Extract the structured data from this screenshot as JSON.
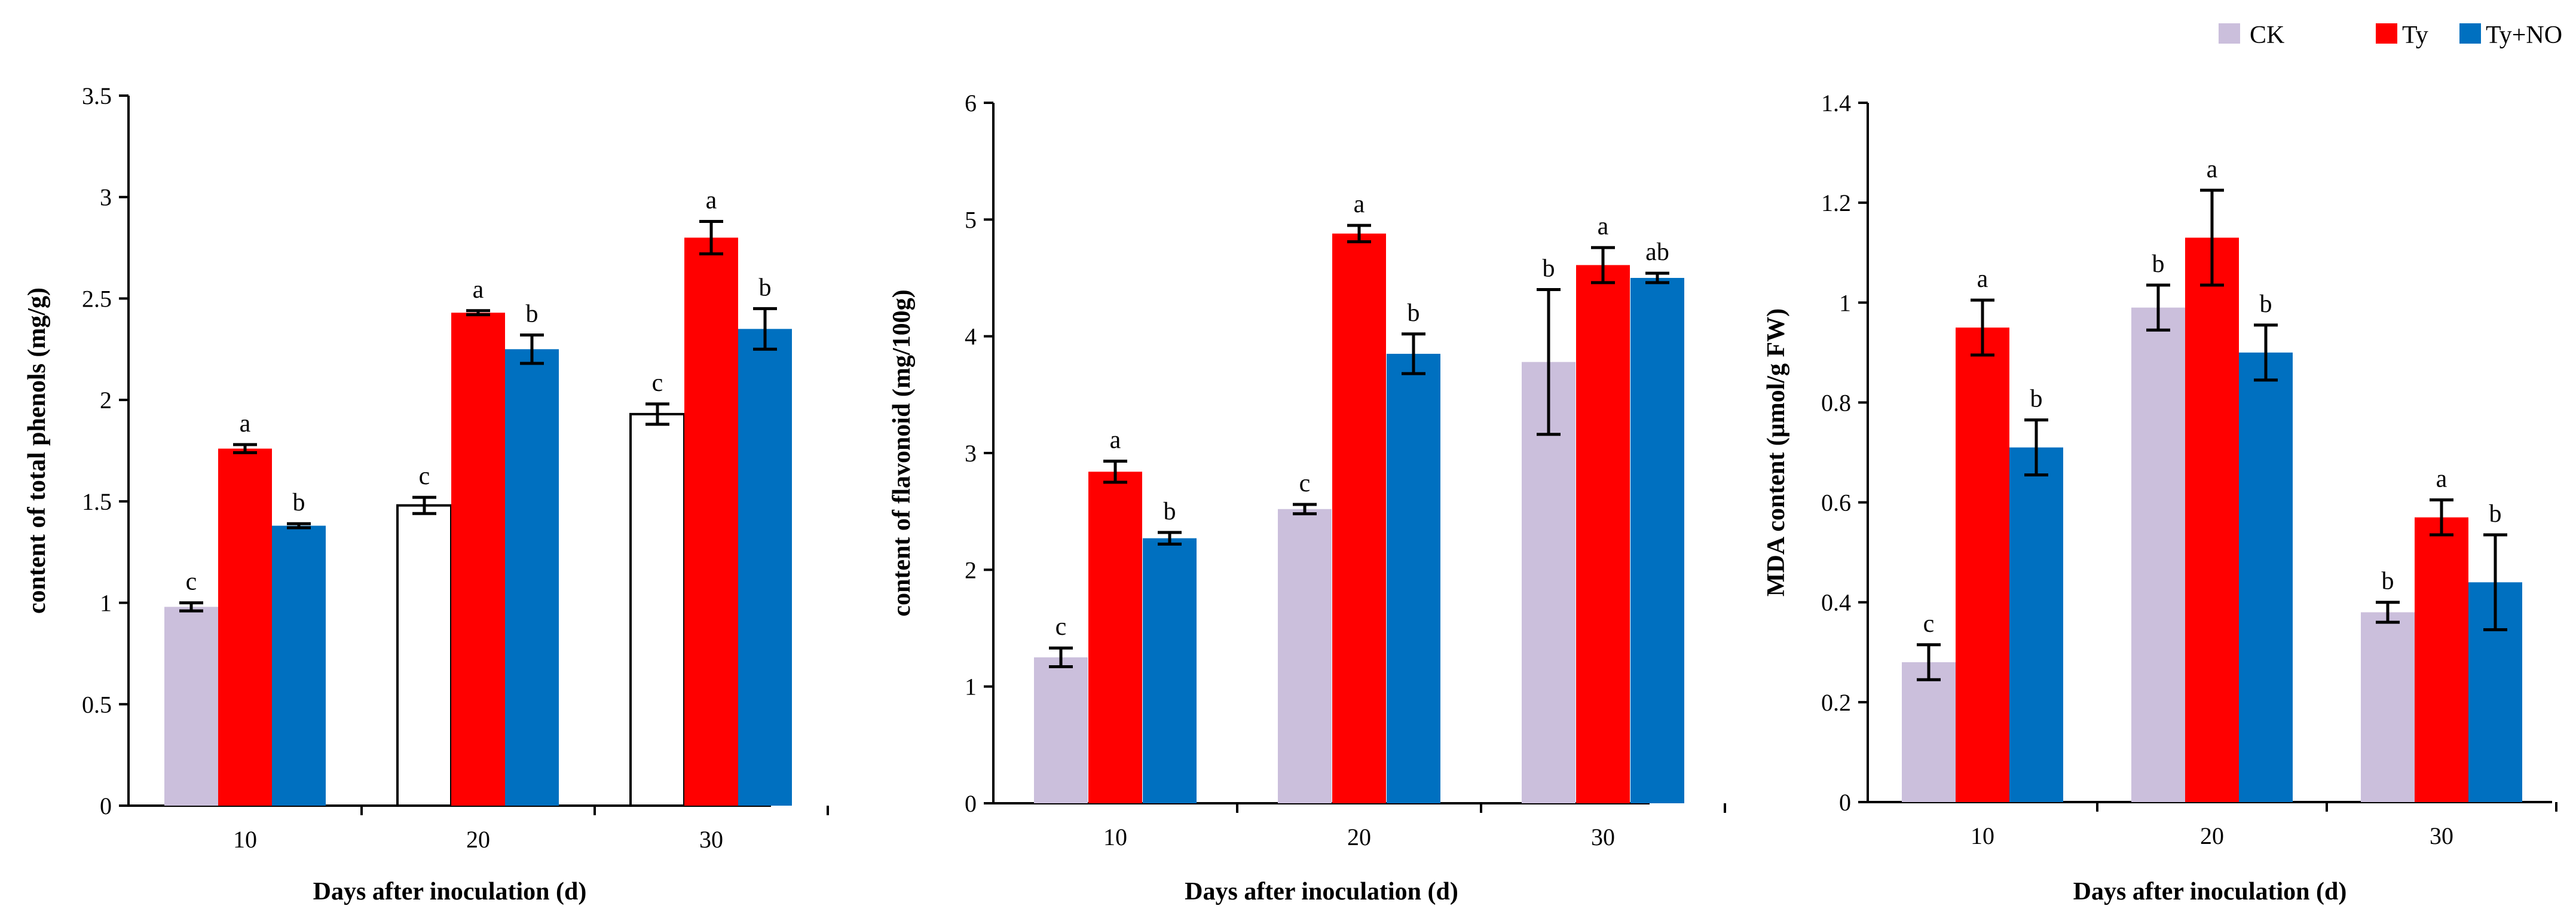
{
  "legend": [
    {
      "name": "CK",
      "color": "#cbbfdc"
    },
    {
      "name": "Ty",
      "color": "#ff0000"
    },
    {
      "name": "Ty+NO",
      "color": "#0070c0"
    }
  ],
  "chart_data": [
    {
      "type": "bar",
      "title": "",
      "xlabel": "Days after inoculation (d)",
      "ylabel": "content of total phenols (mg/g)",
      "ylim": [
        0,
        3.5
      ],
      "yticks": [
        "0",
        "0.5",
        "1",
        "1.5",
        "2",
        "2.5",
        "3",
        "3.5"
      ],
      "categories": [
        "10",
        "20",
        "30"
      ],
      "series": [
        {
          "name": "CK",
          "values": [
            0.98,
            1.48,
            1.93
          ],
          "errors": [
            0.02,
            0.04,
            0.05
          ],
          "labels": [
            "c",
            "c",
            "c"
          ],
          "fills": [
            "#cbbfdc",
            "#ffffff",
            "#ffffff"
          ]
        },
        {
          "name": "Ty",
          "values": [
            1.76,
            2.43,
            2.8
          ],
          "errors": [
            0.02,
            0.01,
            0.08
          ],
          "labels": [
            "a",
            "a",
            "a"
          ]
        },
        {
          "name": "Ty+NO",
          "values": [
            1.38,
            2.25,
            2.35
          ],
          "errors": [
            0.01,
            0.07,
            0.1
          ],
          "labels": [
            "b",
            "b",
            "b"
          ]
        }
      ]
    },
    {
      "type": "bar",
      "title": "",
      "xlabel": "Days after inoculation (d)",
      "ylabel": "content of flavonoid (mg/100g)",
      "ylim": [
        0,
        6
      ],
      "yticks": [
        "0",
        "1",
        "2",
        "3",
        "4",
        "5",
        "6"
      ],
      "categories": [
        "10",
        "20",
        "30"
      ],
      "series": [
        {
          "name": "CK",
          "values": [
            1.25,
            2.52,
            3.78
          ],
          "errors": [
            0.08,
            0.04,
            0.62
          ],
          "labels": [
            "c",
            "c",
            "b"
          ]
        },
        {
          "name": "Ty",
          "values": [
            2.84,
            4.88,
            4.61
          ],
          "errors": [
            0.09,
            0.07,
            0.15
          ],
          "labels": [
            "a",
            "a",
            "a"
          ]
        },
        {
          "name": "Ty+NO",
          "values": [
            2.27,
            3.85,
            4.5
          ],
          "errors": [
            0.05,
            0.17,
            0.04
          ],
          "labels": [
            "b",
            "b",
            "ab"
          ]
        }
      ]
    },
    {
      "type": "bar",
      "title": "",
      "xlabel": "Days after inoculation (d)",
      "ylabel": "MDA content (μmol/g FW)",
      "ylim": [
        0,
        1.4
      ],
      "yticks": [
        "0",
        "0.2",
        "0.4",
        "0.6",
        "0.8",
        "1",
        "1.2",
        "1.4"
      ],
      "categories": [
        "10",
        "20",
        "30"
      ],
      "series": [
        {
          "name": "CK",
          "values": [
            0.28,
            0.99,
            0.38
          ],
          "errors": [
            0.035,
            0.045,
            0.02
          ],
          "labels": [
            "c",
            "b",
            "b"
          ]
        },
        {
          "name": "Ty",
          "values": [
            0.95,
            1.13,
            0.57
          ],
          "errors": [
            0.055,
            0.095,
            0.035
          ],
          "labels": [
            "a",
            "a",
            "a"
          ]
        },
        {
          "name": "Ty+NO",
          "values": [
            0.71,
            0.9,
            0.44
          ],
          "errors": [
            0.055,
            0.055,
            0.095
          ],
          "labels": [
            "b",
            "b",
            "b"
          ]
        }
      ]
    }
  ]
}
